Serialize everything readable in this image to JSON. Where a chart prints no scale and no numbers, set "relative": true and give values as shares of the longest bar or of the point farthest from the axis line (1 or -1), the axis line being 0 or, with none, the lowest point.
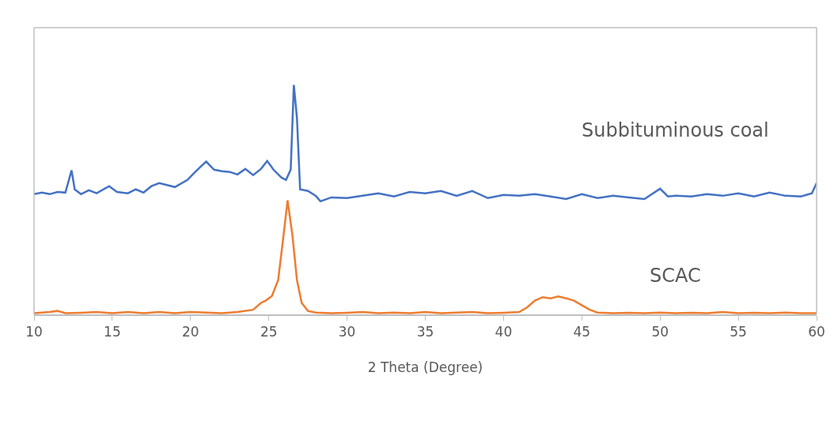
{
  "chart_data": {
    "type": "line",
    "xlabel": "2 Theta (Degree)",
    "relative": true,
    "xlim": [
      10,
      60
    ],
    "xticks": [
      10,
      15,
      20,
      25,
      30,
      35,
      40,
      45,
      50,
      55,
      60
    ],
    "legend": false,
    "marker": "none",
    "line_style": "solid",
    "series": [
      {
        "name": "Subbituminous coal",
        "color": "#4472c4",
        "x": [
          10,
          10.5,
          11,
          11.5,
          12,
          12.2,
          12.4,
          12.6,
          13,
          13.5,
          14,
          14.8,
          15.3,
          16,
          16.5,
          17,
          17.5,
          18,
          19,
          19.8,
          20.2,
          20.6,
          21,
          21.5,
          22,
          22.5,
          23,
          23.5,
          24,
          24.5,
          24.9,
          25.3,
          25.8,
          26.1,
          26.4,
          26.6,
          26.8,
          27,
          27.5,
          28,
          28.3,
          29,
          30,
          31,
          32,
          33,
          34,
          35,
          36,
          37,
          38,
          39,
          40,
          41,
          42,
          43,
          44,
          45,
          46,
          47,
          48,
          49,
          50,
          50.5,
          51,
          52,
          53,
          54,
          55,
          56,
          57,
          58,
          59,
          59.7,
          60
        ],
        "values": [
          0.524,
          0.531,
          0.524,
          0.534,
          0.531,
          0.579,
          0.628,
          0.545,
          0.524,
          0.541,
          0.528,
          0.559,
          0.534,
          0.528,
          0.545,
          0.531,
          0.559,
          0.572,
          0.555,
          0.586,
          0.614,
          0.641,
          0.666,
          0.631,
          0.624,
          0.621,
          0.61,
          0.634,
          0.607,
          0.634,
          0.669,
          0.631,
          0.597,
          0.586,
          0.631,
          1,
          0.855,
          0.545,
          0.538,
          0.517,
          0.493,
          0.51,
          0.507,
          0.517,
          0.528,
          0.514,
          0.534,
          0.528,
          0.538,
          0.517,
          0.538,
          0.507,
          0.521,
          0.517,
          0.524,
          0.514,
          0.503,
          0.524,
          0.507,
          0.517,
          0.51,
          0.503,
          0.548,
          0.514,
          0.517,
          0.514,
          0.524,
          0.517,
          0.528,
          0.514,
          0.531,
          0.517,
          0.514,
          0.528,
          0.572
        ]
      },
      {
        "name": "SCAC",
        "color": "#ed7d31",
        "x": [
          10,
          11,
          11.5,
          12,
          13,
          14,
          15,
          16,
          17,
          18,
          19,
          20,
          21,
          22,
          23,
          24,
          24.5,
          24.8,
          25.2,
          25.6,
          25.9,
          26.2,
          26.5,
          26.8,
          27.1,
          27.5,
          28,
          29,
          30,
          31,
          32,
          33,
          34,
          35,
          36,
          37,
          38,
          39,
          40,
          41,
          41.5,
          42,
          42.5,
          43,
          43.5,
          44,
          44.5,
          45,
          45.5,
          46,
          47,
          48,
          49,
          50,
          51,
          52,
          53,
          54,
          55,
          56,
          57,
          58,
          59,
          60
        ],
        "values": [
          0.005,
          0.01,
          0.015,
          0.005,
          0.007,
          0.01,
          0.005,
          0.01,
          0.005,
          0.01,
          0.005,
          0.01,
          0.008,
          0.005,
          0.01,
          0.02,
          0.05,
          0.06,
          0.08,
          0.15,
          0.32,
          0.497,
          0.35,
          0.15,
          0.05,
          0.015,
          0.008,
          0.005,
          0.007,
          0.01,
          0.005,
          0.008,
          0.005,
          0.01,
          0.005,
          0.008,
          0.01,
          0.005,
          0.007,
          0.01,
          0.03,
          0.06,
          0.075,
          0.07,
          0.078,
          0.07,
          0.06,
          0.04,
          0.02,
          0.008,
          0.005,
          0.007,
          0.005,
          0.008,
          0.005,
          0.007,
          0.005,
          0.01,
          0.005,
          0.007,
          0.005,
          0.008,
          0.005,
          0.005
        ]
      }
    ]
  }
}
